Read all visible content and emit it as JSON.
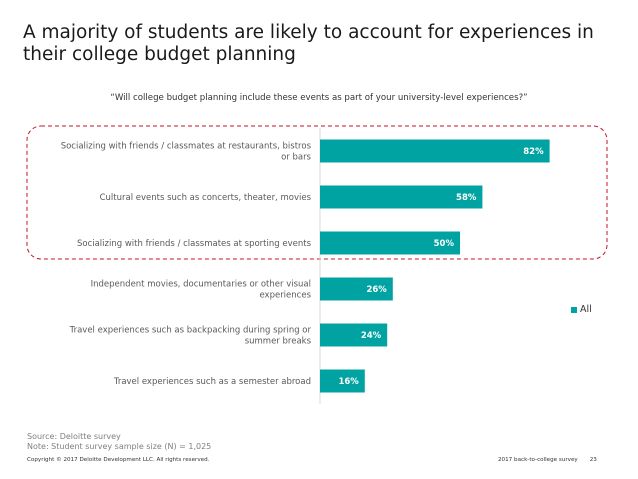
{
  "title": "A majority of students are likely to account for experiences in their college budget planning",
  "chart_data": {
    "type": "bar",
    "orientation": "horizontal",
    "title": "“Will college budget planning include these events as part of your university-level experiences?”",
    "categories": [
      [
        "Socializing with friends / classmates at restaurants, bistros",
        "or bars"
      ],
      [
        "Cultural events such as concerts, theater, movies"
      ],
      [
        "Socializing with friends / classmates at sporting events"
      ],
      [
        "Independent movies, documentaries or other visual",
        "experiences"
      ],
      [
        "Travel experiences such as backpacking during spring or",
        "summer breaks"
      ],
      [
        "Travel experiences such as a semester abroad"
      ]
    ],
    "series": [
      {
        "name": "All",
        "values": [
          82,
          58,
          50,
          26,
          24,
          16
        ]
      }
    ],
    "value_labels": [
      "82%",
      "58%",
      "50%",
      "26%",
      "24%",
      "16%"
    ],
    "xlim": [
      0,
      100
    ],
    "highlighted_top_n": 3,
    "colors": {
      "bar": "#00A3A1",
      "highlight_border": "#C8102E",
      "axis": "#d9d9d9"
    },
    "legend_position": "right"
  },
  "source": "Source: Deloitte survey",
  "note": "Note:  Student survey sample size (N) = 1,025",
  "footer": {
    "copyright": "Copyright © 2017 Deloitte Development LLC. All rights reserved.",
    "survey": "2017 back-to-college survey",
    "page": "23"
  }
}
